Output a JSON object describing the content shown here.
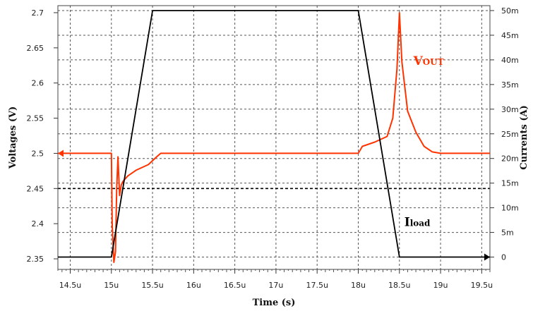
{
  "chart_data": {
    "type": "line",
    "title": "",
    "xlabel": "Time (s)",
    "ylabel_left": "Voltages (V)",
    "ylabel_right": "Currents (A)",
    "xlim": [
      14.35,
      19.6
    ],
    "ylim_left": [
      2.335,
      2.71
    ],
    "ylim_right": [
      -2.5,
      51
    ],
    "grid": true,
    "x_ticks": [
      {
        "v": 14.5,
        "label": "14.5u"
      },
      {
        "v": 15,
        "label": "15u"
      },
      {
        "v": 15.5,
        "label": "15.5u"
      },
      {
        "v": 16,
        "label": "16u"
      },
      {
        "v": 16.5,
        "label": "16.5u"
      },
      {
        "v": 17,
        "label": "17u"
      },
      {
        "v": 17.5,
        "label": "17.5u"
      },
      {
        "v": 18,
        "label": "18u"
      },
      {
        "v": 18.5,
        "label": "18.5u"
      },
      {
        "v": 19,
        "label": "19u"
      },
      {
        "v": 19.5,
        "label": "19.5u"
      }
    ],
    "left_ticks": [
      {
        "v": 2.35,
        "label": "2.35"
      },
      {
        "v": 2.4,
        "label": "2.4"
      },
      {
        "v": 2.45,
        "label": "2.45"
      },
      {
        "v": 2.5,
        "label": "2.5"
      },
      {
        "v": 2.55,
        "label": "2.55"
      },
      {
        "v": 2.6,
        "label": "2.6"
      },
      {
        "v": 2.65,
        "label": "2.65"
      },
      {
        "v": 2.7,
        "label": "2.7"
      }
    ],
    "right_ticks": [
      {
        "v": 0,
        "label": "0"
      },
      {
        "v": 5,
        "label": "5m"
      },
      {
        "v": 10,
        "label": "10m"
      },
      {
        "v": 15,
        "label": "15m"
      },
      {
        "v": 20,
        "label": "20m"
      },
      {
        "v": 25,
        "label": "25m"
      },
      {
        "v": 30,
        "label": "30m"
      },
      {
        "v": 35,
        "label": "35m"
      },
      {
        "v": 40,
        "label": "40m"
      },
      {
        "v": 45,
        "label": "45m"
      },
      {
        "v": 50,
        "label": "50m"
      }
    ],
    "series": [
      {
        "name": "VOUT",
        "axis": "left",
        "color": "#ff3300",
        "x": [
          14.35,
          15.0,
          15.01,
          15.03,
          15.05,
          15.065,
          15.08,
          15.1,
          15.12,
          15.14,
          15.2,
          15.3,
          15.45,
          15.55,
          15.6,
          15.7,
          16.5,
          17.5,
          18.0,
          18.05,
          18.2,
          18.35,
          18.42,
          18.47,
          18.5,
          18.53,
          18.6,
          18.7,
          18.8,
          18.9,
          19.0,
          19.2,
          19.6
        ],
        "y": [
          2.5,
          2.5,
          2.4,
          2.345,
          2.36,
          2.45,
          2.495,
          2.44,
          2.455,
          2.46,
          2.468,
          2.476,
          2.484,
          2.495,
          2.5,
          2.5,
          2.5,
          2.5,
          2.5,
          2.51,
          2.516,
          2.524,
          2.55,
          2.62,
          2.7,
          2.63,
          2.56,
          2.53,
          2.51,
          2.502,
          2.5,
          2.5,
          2.5
        ]
      },
      {
        "name": "Iload",
        "axis": "right",
        "color": "#000000",
        "x": [
          14.35,
          15.0,
          15.5,
          18.0,
          18.5,
          19.6
        ],
        "y": [
          0,
          0,
          50,
          50,
          0,
          0
        ]
      }
    ],
    "reference_lines": [
      {
        "axis": "left",
        "y": 2.45,
        "style": "dashed"
      }
    ],
    "annotations": [
      {
        "series": "VOUT",
        "main": "V",
        "sub": "OUT",
        "x": 18.67,
        "y": 2.626,
        "color": "#ff3300"
      },
      {
        "series": "Iload",
        "main": "I",
        "sub": "load",
        "x": 18.56,
        "y": 6.3,
        "color": "#000000"
      }
    ]
  }
}
